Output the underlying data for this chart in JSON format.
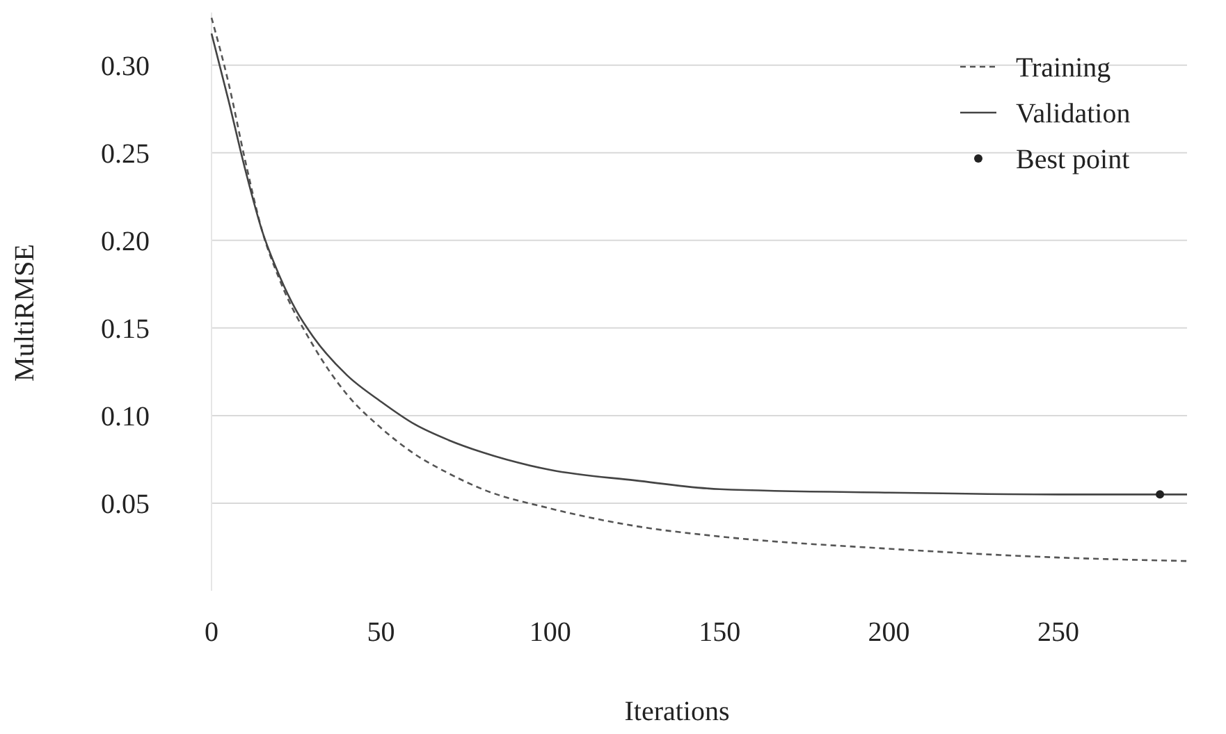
{
  "chart_data": {
    "type": "line",
    "xlabel": "Iterations",
    "ylabel": "MultiRMSE",
    "xlim": [
      0,
      288
    ],
    "ylim": [
      0,
      0.33
    ],
    "xticks": [
      0,
      50,
      100,
      150,
      200,
      250
    ],
    "yticks": [
      0.05,
      {
        "value": 0.1,
        "label": "0.10"
      },
      0.15,
      {
        "value": 0.2,
        "label": "0.20"
      },
      0.25,
      {
        "value": 0.3,
        "label": "0.30"
      }
    ],
    "grid": "y",
    "legend": "top right",
    "series": [
      {
        "name": "Training",
        "color": "#555555",
        "line_style": "dashed",
        "marker": "none",
        "x": [
          0,
          5,
          10,
          15,
          20,
          30,
          40,
          50,
          60,
          70,
          80,
          100,
          125,
          150,
          200,
          250,
          288
        ],
        "values": [
          0.327,
          0.29,
          0.245,
          0.205,
          0.178,
          0.14,
          0.112,
          0.093,
          0.078,
          0.067,
          0.058,
          0.047,
          0.037,
          0.031,
          0.024,
          0.019,
          0.017
        ]
      },
      {
        "name": "Validation",
        "color": "#444444",
        "line_style": "solid",
        "marker": "none",
        "x": [
          0,
          5,
          10,
          15,
          20,
          25,
          30,
          40,
          50,
          60,
          70,
          80,
          100,
          125,
          150,
          200,
          250,
          288
        ],
        "values": [
          0.318,
          0.28,
          0.24,
          0.205,
          0.18,
          0.16,
          0.145,
          0.123,
          0.108,
          0.095,
          0.086,
          0.079,
          0.069,
          0.063,
          0.058,
          0.056,
          0.055,
          0.055
        ]
      },
      {
        "name": "Best point",
        "type": "scatter",
        "color": "#222222",
        "marker": "circle",
        "x": [
          280
        ],
        "values": [
          0.055
        ]
      }
    ]
  }
}
